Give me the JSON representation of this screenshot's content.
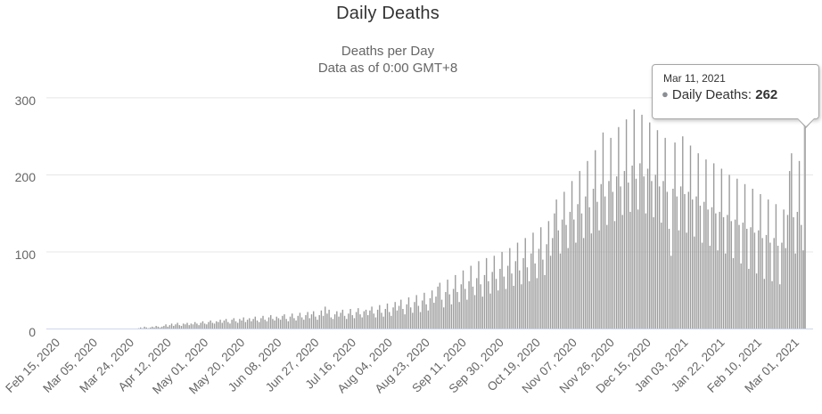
{
  "header": {
    "title": "Daily Deaths",
    "subtitle_line1": "Deaths per Day",
    "subtitle_line2": "Data as of 0:00 GMT+8"
  },
  "tooltip": {
    "date": "Mar 11, 2021",
    "bullet": "●",
    "series": "Daily Deaths",
    "separator": ": ",
    "value": "262"
  },
  "colors": {
    "bar": "#9c9c9c",
    "gridline": "#e6e6e6",
    "axis_line": "#ccd6eb",
    "crosshair": "#cccccc",
    "title_text": "#333333",
    "muted_text": "#666666",
    "tooltip_border": "#a5a5a5",
    "marker": "#8a8f94"
  },
  "chart_data": {
    "type": "bar",
    "title": "Daily Deaths",
    "subtitle": [
      "Deaths per Day",
      "Data as of 0:00 GMT+8"
    ],
    "series_name": "Daily Deaths",
    "x_start_date": "Feb 15, 2020",
    "x_end_date": "Mar 11, 2021",
    "x_tick_interval_days": 19,
    "x_tick_labels": [
      "Feb 15, 2020",
      "Mar 05, 2020",
      "Mar 24, 2020",
      "Apr 12, 2020",
      "May 01, 2020",
      "May 20, 2020",
      "Jun 08, 2020",
      "Jun 27, 2020",
      "Jul 16, 2020",
      "Aug 04, 2020",
      "Aug 23, 2020",
      "Sep 11, 2020",
      "Sep 30, 2020",
      "Oct 19, 2020",
      "Nov 07, 2020",
      "Nov 26, 2020",
      "Dec 15, 2020",
      "Jan 03, 2021",
      "Jan 22, 2021",
      "Feb 10, 2021",
      "Mar 01, 2021"
    ],
    "y_ticks": [
      0,
      100,
      200,
      300
    ],
    "ylim": [
      0,
      300
    ],
    "grid": "horizontal",
    "legend": "none",
    "highlighted_point": {
      "date": "Mar 11, 2021",
      "value": 262
    },
    "values": [
      0,
      0,
      0,
      0,
      0,
      0,
      0,
      0,
      0,
      0,
      0,
      0,
      0,
      0,
      0,
      0,
      0,
      0,
      0,
      0,
      0,
      0,
      0,
      0,
      0,
      0,
      0,
      0,
      0,
      0,
      0,
      0,
      0,
      0,
      0,
      0,
      0,
      0,
      0,
      0,
      0,
      0,
      0,
      0,
      0,
      0,
      0,
      1,
      2,
      1,
      3,
      2,
      1,
      2,
      3,
      2,
      4,
      3,
      2,
      3,
      4,
      6,
      3,
      5,
      7,
      4,
      6,
      8,
      5,
      4,
      7,
      6,
      8,
      5,
      7,
      6,
      9,
      7,
      5,
      8,
      10,
      7,
      6,
      9,
      11,
      8,
      7,
      10,
      9,
      12,
      8,
      11,
      13,
      9,
      7,
      12,
      14,
      10,
      8,
      13,
      11,
      15,
      9,
      12,
      14,
      10,
      13,
      16,
      11,
      9,
      14,
      17,
      12,
      10,
      15,
      18,
      13,
      11,
      16,
      14,
      12,
      17,
      19,
      13,
      10,
      16,
      20,
      14,
      11,
      17,
      21,
      15,
      12,
      18,
      22,
      14,
      19,
      23,
      16,
      12,
      18,
      24,
      17,
      29,
      20,
      25,
      15,
      13,
      19,
      23,
      16,
      21,
      25,
      17,
      13,
      20,
      26,
      18,
      14,
      22,
      27,
      19,
      15,
      23,
      25,
      18,
      24,
      29,
      20,
      15,
      25,
      31,
      21,
      16,
      26,
      33,
      22,
      17,
      28,
      35,
      24,
      30,
      38,
      26,
      19,
      32,
      41,
      28,
      21,
      35,
      44,
      30,
      22,
      37,
      47,
      32,
      24,
      40,
      50,
      34,
      42,
      55,
      60,
      38,
      28,
      48,
      64,
      45,
      32,
      52,
      70,
      48,
      35,
      58,
      76,
      52,
      38,
      62,
      82,
      55,
      44,
      66,
      88,
      58,
      42,
      70,
      92,
      62,
      46,
      74,
      95,
      65,
      50,
      78,
      100,
      68,
      52,
      82,
      105,
      72,
      56,
      88,
      112,
      76,
      58,
      92,
      118,
      80,
      62,
      98,
      125,
      85,
      66,
      104,
      132,
      90,
      70,
      110,
      140,
      95,
      118,
      150,
      168,
      128,
      98,
      142,
      178,
      135,
      105,
      152,
      192,
      142,
      112,
      162,
      205,
      150,
      118,
      172,
      218,
      158,
      124,
      182,
      232,
      165,
      128,
      188,
      255,
      172,
      135,
      192,
      248,
      178,
      140,
      198,
      262,
      185,
      148,
      205,
      272,
      190,
      152,
      212,
      285,
      195,
      155,
      215,
      278,
      198,
      150,
      208,
      268,
      192,
      145,
      200,
      258,
      185,
      138,
      192,
      248,
      178,
      130,
      95,
      182,
      242,
      172,
      128,
      185,
      250,
      175,
      125,
      178,
      238,
      168,
      120,
      172,
      228,
      160,
      112,
      165,
      220,
      155,
      108,
      158,
      215,
      150,
      102,
      152,
      208,
      145,
      98,
      148,
      200,
      140,
      92,
      142,
      195,
      135,
      85,
      138,
      188,
      130,
      78,
      132,
      182,
      125,
      72,
      128,
      175,
      118,
      65,
      122,
      168,
      112,
      62,
      118,
      162,
      108,
      58,
      112,
      155,
      105,
      148,
      205,
      228,
      145,
      98,
      152,
      218,
      135,
      102,
      262
    ]
  }
}
